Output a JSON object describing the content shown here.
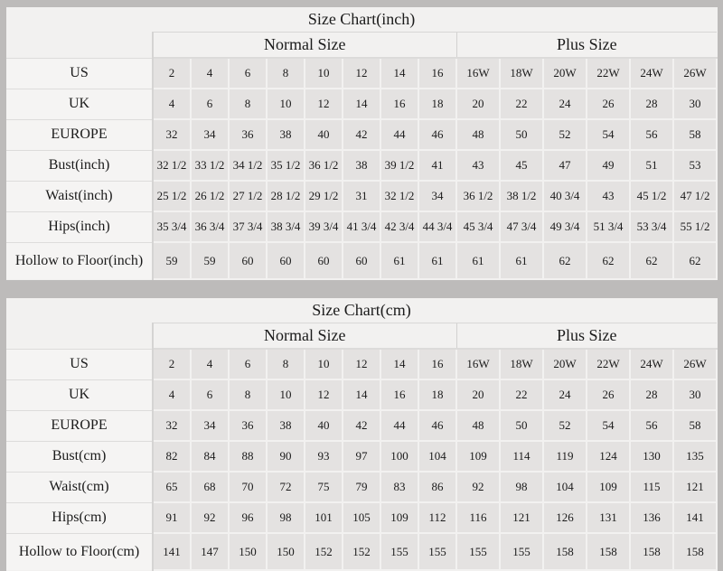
{
  "colors": {
    "page_bg": "#bdbbba",
    "table_bg": "#f2f1f0",
    "label_cell_bg": "#f5f4f3",
    "data_cell_bg": "#e4e2e1",
    "grid_light": "#f2f1f0",
    "grid_dark": "#d5d4d3",
    "text": "#1b1b1b"
  },
  "chart_data": [
    {
      "type": "table",
      "title": "Size Chart(inch)",
      "column_groups": [
        {
          "label": "Normal Size",
          "span": 8
        },
        {
          "label": "Plus Size",
          "span": 6
        }
      ],
      "rows": [
        {
          "label": "US",
          "normal": [
            "2",
            "4",
            "6",
            "8",
            "10",
            "12",
            "14",
            "16"
          ],
          "plus": [
            "16W",
            "18W",
            "20W",
            "22W",
            "24W",
            "26W"
          ]
        },
        {
          "label": "UK",
          "normal": [
            "4",
            "6",
            "8",
            "10",
            "12",
            "14",
            "16",
            "18"
          ],
          "plus": [
            "20",
            "22",
            "24",
            "26",
            "28",
            "30"
          ]
        },
        {
          "label": "EUROPE",
          "normal": [
            "32",
            "34",
            "36",
            "38",
            "40",
            "42",
            "44",
            "46"
          ],
          "plus": [
            "48",
            "50",
            "52",
            "54",
            "56",
            "58"
          ]
        },
        {
          "label": "Bust(inch)",
          "normal": [
            "32 1/2",
            "33 1/2",
            "34 1/2",
            "35 1/2",
            "36 1/2",
            "38",
            "39 1/2",
            "41"
          ],
          "plus": [
            "43",
            "45",
            "47",
            "49",
            "51",
            "53"
          ]
        },
        {
          "label": "Waist(inch)",
          "normal": [
            "25 1/2",
            "26 1/2",
            "27 1/2",
            "28 1/2",
            "29 1/2",
            "31",
            "32 1/2",
            "34"
          ],
          "plus": [
            "36 1/2",
            "38 1/2",
            "40 3/4",
            "43",
            "45 1/2",
            "47 1/2"
          ]
        },
        {
          "label": "Hips(inch)",
          "normal": [
            "35 3/4",
            "36 3/4",
            "37 3/4",
            "38 3/4",
            "39 3/4",
            "41 3/4",
            "42 3/4",
            "44 3/4"
          ],
          "plus": [
            "45 3/4",
            "47 3/4",
            "49 3/4",
            "51 3/4",
            "53 3/4",
            "55 1/2"
          ]
        },
        {
          "label": "Hollow to Floor(inch)",
          "normal": [
            "59",
            "59",
            "60",
            "60",
            "60",
            "60",
            "61",
            "61"
          ],
          "plus": [
            "61",
            "61",
            "62",
            "62",
            "62",
            "62"
          ]
        }
      ]
    },
    {
      "type": "table",
      "title": "Size Chart(cm)",
      "column_groups": [
        {
          "label": "Normal Size",
          "span": 8
        },
        {
          "label": "Plus Size",
          "span": 6
        }
      ],
      "rows": [
        {
          "label": "US",
          "normal": [
            "2",
            "4",
            "6",
            "8",
            "10",
            "12",
            "14",
            "16"
          ],
          "plus": [
            "16W",
            "18W",
            "20W",
            "22W",
            "24W",
            "26W"
          ]
        },
        {
          "label": "UK",
          "normal": [
            "4",
            "6",
            "8",
            "10",
            "12",
            "14",
            "16",
            "18"
          ],
          "plus": [
            "20",
            "22",
            "24",
            "26",
            "28",
            "30"
          ]
        },
        {
          "label": "EUROPE",
          "normal": [
            "32",
            "34",
            "36",
            "38",
            "40",
            "42",
            "44",
            "46"
          ],
          "plus": [
            "48",
            "50",
            "52",
            "54",
            "56",
            "58"
          ]
        },
        {
          "label": "Bust(cm)",
          "normal": [
            "82",
            "84",
            "88",
            "90",
            "93",
            "97",
            "100",
            "104"
          ],
          "plus": [
            "109",
            "114",
            "119",
            "124",
            "130",
            "135"
          ]
        },
        {
          "label": "Waist(cm)",
          "normal": [
            "65",
            "68",
            "70",
            "72",
            "75",
            "79",
            "83",
            "86"
          ],
          "plus": [
            "92",
            "98",
            "104",
            "109",
            "115",
            "121"
          ]
        },
        {
          "label": "Hips(cm)",
          "normal": [
            "91",
            "92",
            "96",
            "98",
            "101",
            "105",
            "109",
            "112"
          ],
          "plus": [
            "116",
            "121",
            "126",
            "131",
            "136",
            "141"
          ]
        },
        {
          "label": "Hollow to Floor(cm)",
          "normal": [
            "141",
            "147",
            "150",
            "150",
            "152",
            "152",
            "155",
            "155"
          ],
          "plus": [
            "155",
            "155",
            "158",
            "158",
            "158",
            "158"
          ]
        }
      ]
    }
  ]
}
